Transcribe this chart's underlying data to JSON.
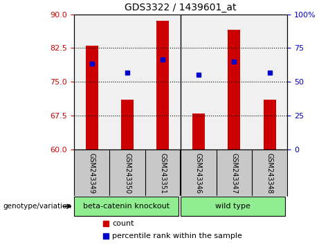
{
  "title": "GDS3322 / 1439601_at",
  "samples": [
    "GSM243349",
    "GSM243350",
    "GSM243351",
    "GSM243346",
    "GSM243347",
    "GSM243348"
  ],
  "groups": [
    "beta-catenin knockout",
    "beta-catenin knockout",
    "beta-catenin knockout",
    "wild type",
    "wild type",
    "wild type"
  ],
  "group_labels": [
    "beta-catenin knockout",
    "wild type"
  ],
  "group_colors": [
    "#90ee90",
    "#90ee90"
  ],
  "bar_values": [
    83.0,
    71.0,
    88.5,
    68.0,
    86.5,
    71.0
  ],
  "dot_values": [
    79.0,
    77.0,
    80.0,
    76.5,
    79.5,
    77.0
  ],
  "bar_color": "#cc0000",
  "dot_color": "#0000cc",
  "ymin": 60,
  "ymax": 90,
  "yticks_left": [
    60,
    67.5,
    75,
    82.5,
    90
  ],
  "yticks_right": [
    0,
    25,
    50,
    75,
    100
  ],
  "yticks_right_labels": [
    "0",
    "25",
    "50",
    "75",
    "100%"
  ],
  "grid_values": [
    67.5,
    75,
    82.5
  ],
  "ylabel_left_color": "#cc0000",
  "ylabel_right_color": "#0000cc",
  "legend_count_label": "count",
  "legend_percentile_label": "percentile rank within the sample",
  "genotype_label": "genotype/variation",
  "background_color": "#ffffff",
  "plot_bg_color": "#f0f0f0",
  "group_bg_color": "#c8c8c8"
}
